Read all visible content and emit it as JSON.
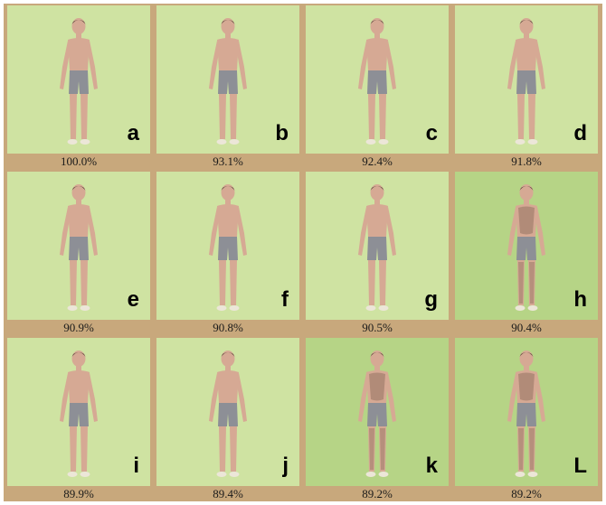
{
  "colors": {
    "frame": "#c8a87c",
    "panel_light": "#cfe3a2",
    "panel_dark": "#b6d486",
    "skin": "#d6a994",
    "shorts": "#8d8f96",
    "hair": "#5b4a3c",
    "shoe": "#ece6d8"
  },
  "icons": {
    "figure": "human-figure-icon"
  },
  "cells": [
    {
      "letter": "a",
      "percent": "100.0%",
      "dark": false,
      "shadow": false
    },
    {
      "letter": "b",
      "percent": "93.1%",
      "dark": false,
      "shadow": false
    },
    {
      "letter": "c",
      "percent": "92.4%",
      "dark": false,
      "shadow": false
    },
    {
      "letter": "d",
      "percent": "91.8%",
      "dark": false,
      "shadow": false
    },
    {
      "letter": "e",
      "percent": "90.9%",
      "dark": false,
      "shadow": false
    },
    {
      "letter": "f",
      "percent": "90.8%",
      "dark": false,
      "shadow": false
    },
    {
      "letter": "g",
      "percent": "90.5%",
      "dark": false,
      "shadow": false
    },
    {
      "letter": "h",
      "percent": "90.4%",
      "dark": true,
      "shadow": true
    },
    {
      "letter": "i",
      "percent": "89.9%",
      "dark": false,
      "shadow": false
    },
    {
      "letter": "j",
      "percent": "89.4%",
      "dark": false,
      "shadow": false
    },
    {
      "letter": "k",
      "percent": "89.2%",
      "dark": true,
      "shadow": true
    },
    {
      "letter": "L",
      "percent": "89.2%",
      "dark": true,
      "shadow": true
    }
  ]
}
